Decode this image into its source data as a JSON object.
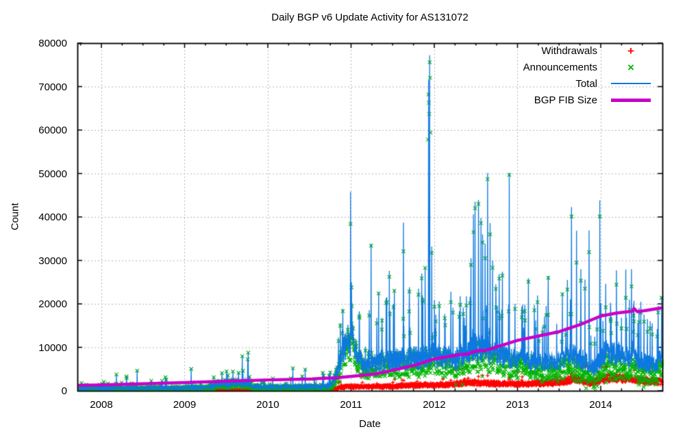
{
  "chart_data": {
    "type": "line+scatter",
    "title": "Daily BGP v6 Update Activity for AS131072",
    "xlabel": "Date",
    "ylabel": "Count",
    "x_range": [
      2007.712,
      2014.741
    ],
    "y_range": [
      0,
      80000
    ],
    "x_ticks": [
      {
        "v": 2008,
        "label": "2008"
      },
      {
        "v": 2009,
        "label": "2009"
      },
      {
        "v": 2010,
        "label": "2010"
      },
      {
        "v": 2011,
        "label": "2011"
      },
      {
        "v": 2012,
        "label": "2012"
      },
      {
        "v": 2013,
        "label": "2013"
      },
      {
        "v": 2014,
        "label": "2014"
      }
    ],
    "x_minor_step": 0.25,
    "y_ticks": [
      {
        "v": 0,
        "label": "0"
      },
      {
        "v": 10000,
        "label": "10000"
      },
      {
        "v": 20000,
        "label": "20000"
      },
      {
        "v": 30000,
        "label": "30000"
      },
      {
        "v": 40000,
        "label": "40000"
      },
      {
        "v": 50000,
        "label": "50000"
      },
      {
        "v": 60000,
        "label": "60000"
      },
      {
        "v": 70000,
        "label": "70000"
      },
      {
        "v": 80000,
        "label": "80000"
      }
    ],
    "grid": true,
    "legend_position": "top-right-inside",
    "legend": [
      {
        "label": "Withdrawals",
        "type": "point",
        "marker": "plus-marker",
        "color": "#ff0000"
      },
      {
        "label": "Announcements",
        "type": "point",
        "marker": "cross-marker",
        "color": "#00b400"
      },
      {
        "label": "Total",
        "type": "line",
        "width": 2,
        "color": "#0d78e0"
      },
      {
        "label": "BGP FIB Size",
        "type": "line",
        "width": 5,
        "color": "#c800c8"
      }
    ],
    "colors": {
      "withdrawals": "#ff0000",
      "announcements": "#00b400",
      "total": "#0d78e0",
      "fib": "#c800c8",
      "grid": "#b4b4b4",
      "border": "#000000",
      "background": "#ffffff"
    },
    "sampling": {
      "seed": 1337,
      "points_per_year": 365
    },
    "envelope_total": [
      [
        2007.712,
        400,
        330
      ],
      [
        2008.3,
        450,
        350
      ],
      [
        2009.25,
        550,
        420
      ],
      [
        2009.42,
        1400,
        900
      ],
      [
        2009.75,
        1400,
        900
      ],
      [
        2009.88,
        650,
        450
      ],
      [
        2010.35,
        700,
        500
      ],
      [
        2010.74,
        850,
        600
      ],
      [
        2010.82,
        2500,
        1500
      ],
      [
        2010.9,
        7500,
        3000
      ],
      [
        2010.96,
        10500,
        3500
      ],
      [
        2011.04,
        8800,
        3000
      ],
      [
        2011.14,
        5200,
        2400
      ],
      [
        2011.5,
        6000,
        2700
      ],
      [
        2011.8,
        6500,
        2900
      ],
      [
        2012.0,
        7000,
        3000
      ],
      [
        2012.25,
        6000,
        2600
      ],
      [
        2012.45,
        8500,
        3400
      ],
      [
        2012.7,
        8000,
        3200
      ],
      [
        2012.9,
        6500,
        2600
      ],
      [
        2013.15,
        6000,
        2400
      ],
      [
        2013.45,
        5500,
        2200
      ],
      [
        2013.62,
        7200,
        2900
      ],
      [
        2013.78,
        6200,
        2600
      ],
      [
        2013.92,
        4300,
        1900
      ],
      [
        2014.05,
        7800,
        3000
      ],
      [
        2014.25,
        7300,
        2800
      ],
      [
        2014.45,
        6000,
        2500
      ],
      [
        2014.62,
        5000,
        2200
      ],
      [
        2014.741,
        6500,
        2800
      ]
    ],
    "envelope_withdrawals": [
      [
        2007.712,
        70,
        60
      ],
      [
        2009.5,
        110,
        90
      ],
      [
        2010.6,
        140,
        110
      ],
      [
        2010.82,
        450,
        250
      ],
      [
        2010.95,
        800,
        350
      ],
      [
        2011.4,
        800,
        380
      ],
      [
        2011.9,
        1150,
        500
      ],
      [
        2012.1,
        1100,
        480
      ],
      [
        2012.45,
        1600,
        650
      ],
      [
        2012.75,
        1400,
        600
      ],
      [
        2013.1,
        1300,
        550
      ],
      [
        2013.55,
        1700,
        700
      ],
      [
        2013.68,
        2500,
        900
      ],
      [
        2013.85,
        1500,
        650
      ],
      [
        2014.0,
        2100,
        800
      ],
      [
        2014.1,
        2600,
        950
      ],
      [
        2014.35,
        2300,
        850
      ],
      [
        2014.55,
        1900,
        750
      ],
      [
        2014.741,
        1700,
        650
      ]
    ],
    "spikes": [
      [
        2007.76,
        1900
      ],
      [
        2007.82,
        1500
      ],
      [
        2008.03,
        2100
      ],
      [
        2008.08,
        1800
      ],
      [
        2008.18,
        3800
      ],
      [
        2008.3,
        3400
      ],
      [
        2008.43,
        4800
      ],
      [
        2008.6,
        2400
      ],
      [
        2008.78,
        2700
      ],
      [
        2009.08,
        5200
      ],
      [
        2009.35,
        3200
      ],
      [
        2009.45,
        4300
      ],
      [
        2009.52,
        3700
      ],
      [
        2009.58,
        4600
      ],
      [
        2009.65,
        4200
      ],
      [
        2009.7,
        4700
      ],
      [
        2009.78,
        3400
      ],
      [
        2009.95,
        2300
      ],
      [
        2010.06,
        3000
      ],
      [
        2010.3,
        5400
      ],
      [
        2010.45,
        5100
      ],
      [
        2010.56,
        2900
      ],
      [
        2010.66,
        4400
      ],
      [
        2010.87,
        15600
      ],
      [
        2010.995,
        45800,
        38400
      ],
      [
        2011.005,
        25000
      ],
      [
        2011.012,
        20300
      ],
      [
        2011.08,
        9000,
        null,
        4600
      ],
      [
        2011.1,
        17800
      ],
      [
        2011.24,
        33800,
        33400
      ],
      [
        2011.33,
        22700,
        22400
      ],
      [
        2011.43,
        21500,
        20400
      ],
      [
        2011.46,
        27600
      ],
      [
        2011.52,
        23300,
        23000
      ],
      [
        2011.63,
        38700,
        32100
      ],
      [
        2011.7,
        23800
      ],
      [
        2011.81,
        23500
      ],
      [
        2011.85,
        27000
      ],
      [
        2011.89,
        28400,
        28300
      ],
      [
        2011.93,
        71500,
        68200,
        5200
      ],
      [
        2011.945,
        77200,
        75600
      ],
      [
        2011.97,
        33200
      ],
      [
        2012.02,
        17500
      ],
      [
        2012.06,
        20600
      ],
      [
        2012.13,
        16500
      ],
      [
        2012.2,
        22800,
        20400
      ],
      [
        2012.3,
        18300
      ],
      [
        2012.36,
        16800
      ],
      [
        2012.44,
        30500
      ],
      [
        2012.47,
        40600,
        36500
      ],
      [
        2012.49,
        43500,
        42000
      ],
      [
        2012.53,
        43900,
        43000,
        3300
      ],
      [
        2012.56,
        39800
      ],
      [
        2012.58,
        36000
      ],
      [
        2012.61,
        33800,
        30500
      ],
      [
        2012.64,
        50100,
        48700,
        3500
      ],
      [
        2012.67,
        38600,
        36000
      ],
      [
        2012.7,
        30000
      ],
      [
        2012.74,
        24500
      ],
      [
        2012.78,
        26900
      ],
      [
        2012.82,
        27400,
        26500
      ],
      [
        2012.9,
        50100,
        49700,
        2900
      ],
      [
        2012.97,
        20000
      ],
      [
        2013.06,
        19800
      ],
      [
        2013.13,
        25900,
        25100
      ],
      [
        2013.22,
        16200
      ],
      [
        2013.3,
        14800
      ],
      [
        2013.37,
        26400,
        26000
      ],
      [
        2013.47,
        15400
      ],
      [
        2013.54,
        22600,
        22200
      ],
      [
        2013.6,
        25500
      ],
      [
        2013.65,
        42300,
        40100,
        4000
      ],
      [
        2013.71,
        36800,
        29500
      ],
      [
        2013.76,
        28000
      ],
      [
        2013.81,
        25600
      ],
      [
        2013.86,
        36900,
        31900
      ],
      [
        2013.99,
        43800,
        40100,
        3600
      ],
      [
        2014.06,
        24600,
        null,
        5400
      ],
      [
        2014.12,
        18800
      ],
      [
        2014.19,
        27700,
        24400
      ],
      [
        2014.25,
        16800
      ],
      [
        2014.3,
        27900,
        21400
      ],
      [
        2014.37,
        28000,
        24000
      ],
      [
        2014.4,
        20700,
        null,
        4700
      ],
      [
        2014.46,
        19000
      ],
      [
        2014.52,
        17500
      ],
      [
        2014.56,
        16500
      ],
      [
        2014.62,
        15500
      ],
      [
        2014.68,
        14200
      ],
      [
        2014.73,
        21700,
        21400
      ]
    ],
    "extra_announce_marks": [
      [
        2011.925,
        57800
      ],
      [
        2011.935,
        66300
      ],
      [
        2011.94,
        63700
      ],
      [
        2011.95,
        72000
      ],
      [
        2011.955,
        59400
      ]
    ],
    "fib_points": [
      [
        2007.712,
        1250
      ],
      [
        2008.0,
        1350
      ],
      [
        2008.5,
        1600
      ],
      [
        2009.0,
        1900
      ],
      [
        2009.5,
        2200
      ],
      [
        2010.0,
        2500
      ],
      [
        2010.55,
        2700
      ],
      [
        2010.62,
        2850
      ],
      [
        2010.8,
        2950
      ],
      [
        2011.0,
        3300
      ],
      [
        2011.3,
        3900
      ],
      [
        2011.5,
        4700
      ],
      [
        2011.75,
        5800
      ],
      [
        2012.0,
        7300
      ],
      [
        2012.3,
        8300
      ],
      [
        2012.42,
        8500
      ],
      [
        2012.45,
        8900
      ],
      [
        2012.55,
        9300
      ],
      [
        2012.6,
        9200
      ],
      [
        2013.0,
        11600
      ],
      [
        2013.3,
        12800
      ],
      [
        2013.5,
        13600
      ],
      [
        2013.75,
        15200
      ],
      [
        2014.0,
        17200
      ],
      [
        2014.2,
        17900
      ],
      [
        2014.38,
        18300
      ],
      [
        2014.4,
        18900
      ],
      [
        2014.44,
        18200
      ],
      [
        2014.55,
        18500
      ],
      [
        2014.74,
        19100
      ]
    ]
  }
}
